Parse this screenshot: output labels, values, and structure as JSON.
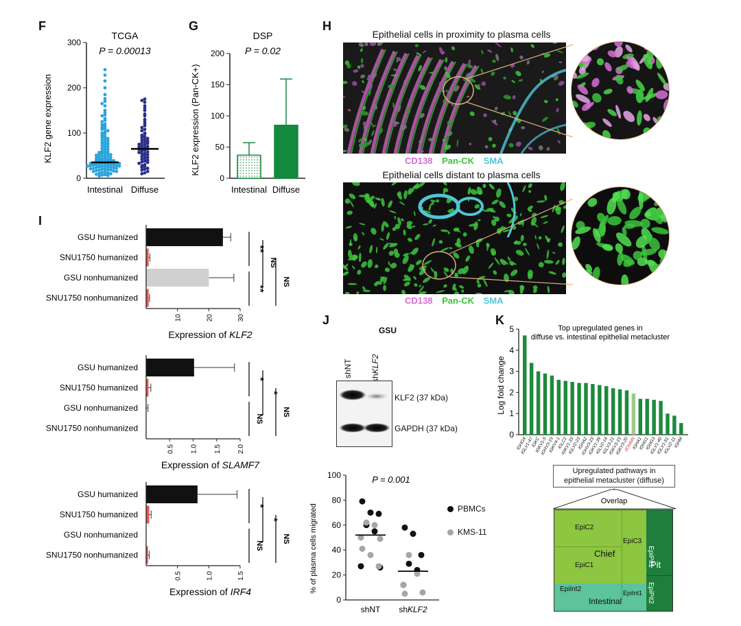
{
  "F": {
    "letter": "F",
    "title": "TCGA",
    "pvalue": "P = 0.00013",
    "ylabel": "KLF2 gene expression",
    "yticks": [
      "0",
      "100",
      "200",
      "300"
    ],
    "categories": [
      "Intestinal",
      "Diffuse"
    ],
    "colors": {
      "intestinal": "#2aa3dc",
      "diffuse": "#2b2f86"
    }
  },
  "G": {
    "letter": "G",
    "title": "DSP",
    "pvalue": "P = 0.02",
    "ylabel": "KLF2 expression (Pan-CK+)",
    "yticks": [
      "0",
      "50",
      "100",
      "150",
      "200"
    ],
    "categories": [
      "Intestinal",
      "Diffuse"
    ],
    "colors": {
      "bar": "#138a3e"
    }
  },
  "H": {
    "letter": "H",
    "top_title": "Epithelial cells in proximity to plasma cells",
    "bottom_title": "Epithelial cells distant to plasma cells",
    "legend": [
      {
        "label": "CD138",
        "color": "#d36ed3"
      },
      {
        "label": "Pan-CK",
        "color": "#3cc43c"
      },
      {
        "label": "SMA",
        "color": "#4fc6d8"
      }
    ]
  },
  "I": {
    "letter": "I",
    "rows": [
      "GSU humanized",
      "SNU1750 humanized",
      "GSU nonhumanized",
      "SNU1750 nonhumanized"
    ],
    "panels": [
      {
        "xlabel_prefix": "Expression of ",
        "gene": "KLF2",
        "ticks": [
          "10",
          "20",
          "30"
        ],
        "sig": [
          "**",
          "**",
          "NS",
          "NS"
        ]
      },
      {
        "xlabel_prefix": "Expression of ",
        "gene": "SLAMF7",
        "ticks": [
          "0.5",
          "1.0",
          "1.5",
          "2.0"
        ],
        "sig": [
          "*",
          "NS",
          "*",
          "NS"
        ]
      },
      {
        "xlabel_prefix": "Expression of ",
        "gene": "IRF4",
        "ticks": [
          "0.5",
          "1.0",
          "1.5"
        ],
        "sig": [
          "*",
          "NS",
          "*",
          "NS"
        ]
      }
    ]
  },
  "J": {
    "letter": "J",
    "cell_line": "GSU",
    "lanes": [
      "shNT",
      "shKLF2"
    ],
    "bands": [
      "KLF2 (37 kDa)",
      "GAPDH (37 kDa)"
    ],
    "pvalue": "P = 0.001",
    "ylabel": "% of plasma cells migrated",
    "yticks": [
      "0",
      "20",
      "40",
      "60",
      "80",
      "100"
    ],
    "groups": [
      "shNT",
      "shKLF2"
    ],
    "legend": [
      {
        "label": "PBMCs",
        "color": "#111111"
      },
      {
        "label": "KMS-11",
        "color": "#a6a6a6"
      }
    ]
  },
  "K": {
    "letter": "K",
    "title_line1": "Top upregulated genes in",
    "title_line2": "diffuse vs. intestinal epithelial metacluster",
    "ylabel": "Log fold change",
    "yticks": [
      "0",
      "1",
      "2",
      "3",
      "4",
      "5"
    ],
    "highlight_color": "#cc2222",
    "pathway_title_line1": "Upregulated pathways in",
    "pathway_title_line2": "epithelial metacluster (diffuse)",
    "overlap_label": "Overlap",
    "boxes": {
      "epic2": "EpiC2",
      "epic3": "EpiC3",
      "chief": "Chief",
      "epic1": "EpiC1",
      "epipit1": "EpiPit1",
      "pit": "Pit",
      "epipit2": "EpiPit2",
      "epiint2": "EpiInt2",
      "epiint1": "EpiInt1",
      "intestinal": "Intestinal"
    }
  },
  "chart_data": [
    {
      "panel": "F",
      "type": "scatter",
      "title": "TCGA",
      "ylabel": "KLF2 gene expression",
      "ylim": [
        0,
        300
      ],
      "categories": [
        "Intestinal",
        "Diffuse"
      ],
      "medians": [
        35,
        65
      ],
      "series": [
        {
          "name": "Intestinal",
          "values": [
            240,
            228,
            215,
            200,
            185,
            176,
            170,
            165,
            160,
            150,
            145,
            140,
            138,
            132,
            128,
            125,
            120,
            118,
            115,
            112,
            110,
            108,
            105,
            103,
            100,
            98,
            95,
            92,
            90,
            88,
            86,
            84,
            82,
            80,
            78,
            76,
            74,
            72,
            70,
            68,
            66,
            64,
            62,
            60,
            58,
            57,
            56,
            55,
            54,
            53,
            52,
            51,
            50,
            49,
            48,
            47,
            46,
            45,
            44,
            43,
            42,
            41,
            40,
            40,
            39,
            38,
            38,
            37,
            36,
            36,
            35,
            35,
            34,
            34,
            33,
            33,
            32,
            32,
            31,
            31,
            30,
            30,
            29,
            29,
            28,
            28,
            27,
            27,
            26,
            26,
            25,
            25,
            24,
            24,
            23,
            22,
            22,
            21,
            20,
            20,
            19,
            18,
            18,
            17,
            16,
            15,
            15,
            14,
            13,
            12,
            11,
            10,
            9,
            8,
            7,
            6,
            5
          ]
        },
        {
          "name": "Diffuse",
          "values": [
            175,
            172,
            168,
            160,
            155,
            150,
            142,
            138,
            130,
            125,
            120,
            116,
            112,
            108,
            105,
            100,
            98,
            95,
            92,
            90,
            88,
            86,
            84,
            82,
            80,
            78,
            77,
            75,
            74,
            72,
            70,
            69,
            68,
            66,
            65,
            64,
            62,
            60,
            58,
            57,
            55,
            54,
            52,
            50,
            48,
            46,
            44,
            42,
            40,
            38,
            36,
            35,
            33,
            30,
            28,
            26,
            24,
            22,
            20,
            18,
            15,
            12,
            10
          ]
        }
      ]
    },
    {
      "panel": "G",
      "type": "bar",
      "title": "DSP",
      "ylabel": "KLF2 expression (Pan-CK+)",
      "ylim": [
        0,
        200
      ],
      "categories": [
        "Intestinal",
        "Diffuse"
      ],
      "values": [
        37,
        85
      ],
      "error_upper": [
        57,
        159
      ]
    },
    {
      "panel": "I-KLF2",
      "type": "bar",
      "orientation": "horizontal",
      "xlabel": "Expression of KLF2",
      "xlim": [
        0,
        30
      ],
      "categories": [
        "GSU humanized",
        "SNU1750 humanized",
        "GSU nonhumanized",
        "SNU1750 nonhumanized"
      ],
      "values": [
        24.5,
        0.8,
        20,
        0.8
      ],
      "error_upper": [
        27,
        1.2,
        28,
        1.1
      ],
      "colors": [
        "#111111",
        "#e8574e",
        "#d0d0d0",
        "#e8574e"
      ]
    },
    {
      "panel": "I-SLAMF7",
      "type": "bar",
      "orientation": "horizontal",
      "xlabel": "Expression of SLAMF7",
      "xlim": [
        0,
        2
      ],
      "categories": [
        "GSU humanized",
        "SNU1750 humanized",
        "GSU nonhumanized",
        "SNU1750 nonhumanized"
      ],
      "values": [
        1.02,
        0.05,
        0.005,
        0
      ],
      "error_upper": [
        1.88,
        0.1,
        0.04,
        0
      ],
      "colors": [
        "#111111",
        "#e8574e",
        "#d0d0d0",
        "#e8574e"
      ]
    },
    {
      "panel": "I-IRF4",
      "type": "bar",
      "orientation": "horizontal",
      "xlabel": "Expression of IRF4",
      "xlim": [
        0,
        1.5
      ],
      "categories": [
        "GSU humanized",
        "SNU1750 humanized",
        "GSU nonhumanized",
        "SNU1750 nonhumanized"
      ],
      "values": [
        0.82,
        0.05,
        0,
        0.03
      ],
      "error_upper": [
        1.45,
        0.08,
        0,
        0.05
      ],
      "colors": [
        "#111111",
        "#e8574e",
        "#d0d0d0",
        "#e8574e"
      ]
    },
    {
      "panel": "J",
      "type": "scatter",
      "ylabel": "% of plasma cells migrated",
      "ylim": [
        0,
        100
      ],
      "categories": [
        "shNT",
        "shKLF2"
      ],
      "medians": [
        52,
        23
      ],
      "series": [
        {
          "name": "PBMCs",
          "points": [
            [
              "shNT",
              79
            ],
            [
              "shNT",
              70
            ],
            [
              "shNT",
              69
            ],
            [
              "shNT",
              60
            ],
            [
              "shNT",
              55
            ],
            [
              "shNT",
              27
            ],
            [
              "shNT",
              26
            ],
            [
              "shKLF2",
              58
            ],
            [
              "shKLF2",
              53
            ],
            [
              "shKLF2",
              36
            ],
            [
              "shKLF2",
              29
            ],
            [
              "shKLF2",
              24
            ],
            [
              "shKLF2",
              12
            ]
          ]
        },
        {
          "name": "KMS-11",
          "points": [
            [
              "shNT",
              62
            ],
            [
              "shNT",
              60
            ],
            [
              "shNT",
              50
            ],
            [
              "shNT",
              49
            ],
            [
              "shNT",
              41
            ],
            [
              "shNT",
              36
            ],
            [
              "shNT",
              27
            ],
            [
              "shKLF2",
              36
            ],
            [
              "shKLF2",
              21
            ],
            [
              "shKLF2",
              12
            ],
            [
              "shKLF2",
              6
            ],
            [
              "shKLF2",
              5
            ]
          ]
        }
      ]
    },
    {
      "panel": "K",
      "type": "bar",
      "ylabel": "Log fold change",
      "ylim": [
        0,
        5
      ],
      "categories": [
        "IGHG4",
        "IGLV1-47",
        "IGKC",
        "IGKV1-5",
        "IGHV3-15",
        "IGKV4-1",
        "IGLC2",
        "IGKV1-33",
        "IGLV2-23",
        "IGHA2",
        "IGHV3-23",
        "IGKV1-39",
        "IGLV2-14",
        "IGLV3-21",
        "IGKV3-15",
        "IGKV3-20",
        "JCHAIN",
        "IGHA1",
        "IGHG1",
        "IGHG3",
        "IGLV1-40",
        "IGLV1-51",
        "IGLV2-11",
        "IGHM"
      ],
      "values": [
        4.7,
        3.4,
        3.0,
        2.9,
        2.8,
        2.6,
        2.55,
        2.5,
        2.45,
        2.45,
        2.4,
        2.35,
        2.3,
        2.2,
        2.15,
        2.1,
        1.95,
        1.7,
        1.7,
        1.65,
        1.6,
        1.0,
        0.9,
        0.55
      ],
      "highlight": "JCHAIN"
    }
  ]
}
